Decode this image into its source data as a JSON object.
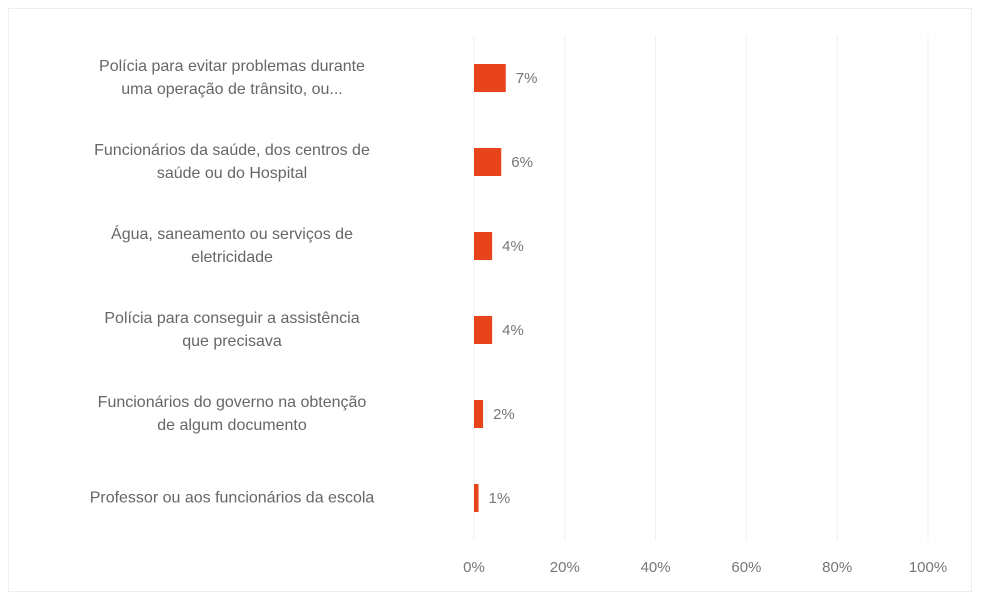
{
  "chart_data": {
    "type": "barh",
    "categories": [
      "Polícia para evitar problemas durante\numa operação de trânsito, ou...",
      "Funcionários da saúde, dos centros de\nsaúde ou do Hospital",
      "Água, saneamento ou serviços de\neletricidade",
      "Polícia para conseguir a assistência\nque precisava",
      "Funcionários do governo na obtenção\nde algum documento",
      "Professor ou aos funcionários da escola"
    ],
    "values": [
      7,
      6,
      4,
      4,
      2,
      1
    ],
    "value_labels": [
      "7%",
      "6%",
      "4%",
      "4%",
      "2%",
      "1%"
    ],
    "color": "#e8441c",
    "xlim": [
      0,
      100
    ],
    "xticks": [
      {
        "value": 0,
        "label": "0%"
      },
      {
        "value": 20,
        "label": "20%"
      },
      {
        "value": 40,
        "label": "40%"
      },
      {
        "value": 60,
        "label": "60%"
      },
      {
        "value": 80,
        "label": "80%"
      },
      {
        "value": 100,
        "label": "100%"
      }
    ],
    "grid": true
  }
}
